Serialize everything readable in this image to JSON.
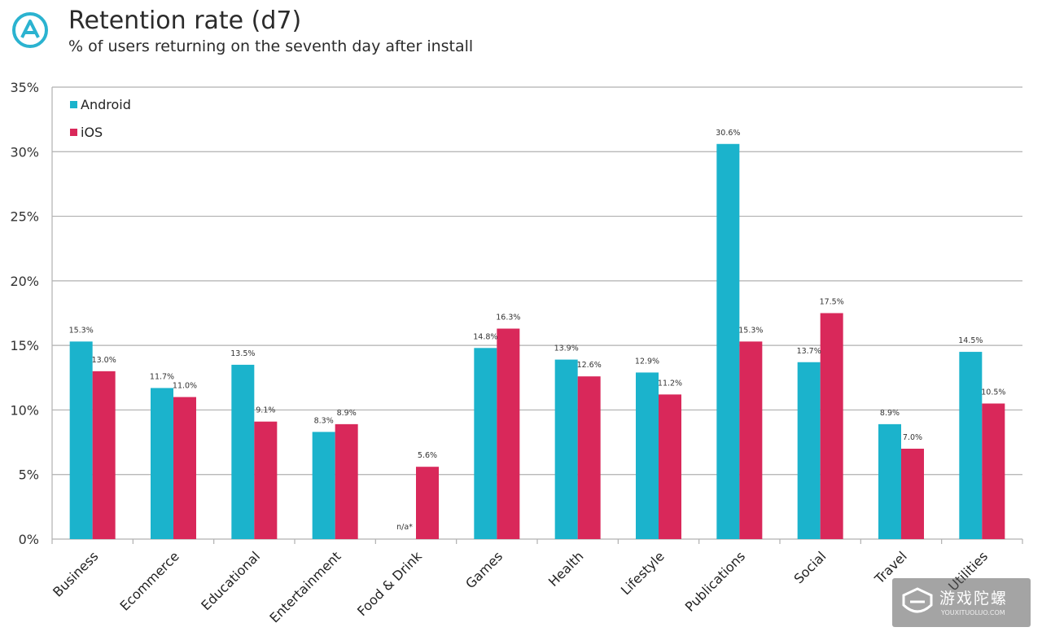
{
  "header": {
    "title": "Retention rate (d7)",
    "subtitle": "% of users returning on the seventh day after install"
  },
  "watermark": {
    "text": "游戏陀螺",
    "subtext": "YOUXITUOLUO.COM"
  },
  "colors": {
    "android": "#1bb3cc",
    "ios": "#d9285a",
    "grid": "#b0b0b0",
    "logo": "#2bb3d0"
  },
  "chart_data": {
    "type": "bar",
    "title": "Retention rate (d7)",
    "subtitle": "% of users returning on the seventh day after install",
    "categories": [
      "Business",
      "Ecommerce",
      "Educational",
      "Entertainment",
      "Food & Drink",
      "Games",
      "Health",
      "Lifestyle",
      "Publications",
      "Social",
      "Travel",
      "Utilities"
    ],
    "series": [
      {
        "name": "Android",
        "values": [
          15.3,
          11.7,
          13.5,
          8.3,
          null,
          14.8,
          13.9,
          12.9,
          30.6,
          13.7,
          8.9,
          14.5
        ],
        "labels": [
          "15.3%",
          "11.7%",
          "13.5%",
          "8.3%",
          "n/a*",
          "14.8%",
          "13.9%",
          "12.9%",
          "30.6%",
          "13.7%",
          "8.9%",
          "14.5%"
        ]
      },
      {
        "name": "iOS",
        "values": [
          13.0,
          11.0,
          9.1,
          8.9,
          5.6,
          16.3,
          12.6,
          11.2,
          15.3,
          17.5,
          7.0,
          10.5
        ],
        "labels": [
          "13.0%",
          "11.0%",
          "9.1%",
          "8.9%",
          "5.6%",
          "16.3%",
          "12.6%",
          "11.2%",
          "15.3%",
          "17.5%",
          "7.0%",
          "10.5%"
        ]
      }
    ],
    "y_ticks": [
      "0%",
      "5%",
      "10%",
      "15%",
      "20%",
      "25%",
      "30%",
      "35%"
    ],
    "ylim": [
      0,
      35
    ],
    "grid": true,
    "legend_position": "top-left"
  }
}
